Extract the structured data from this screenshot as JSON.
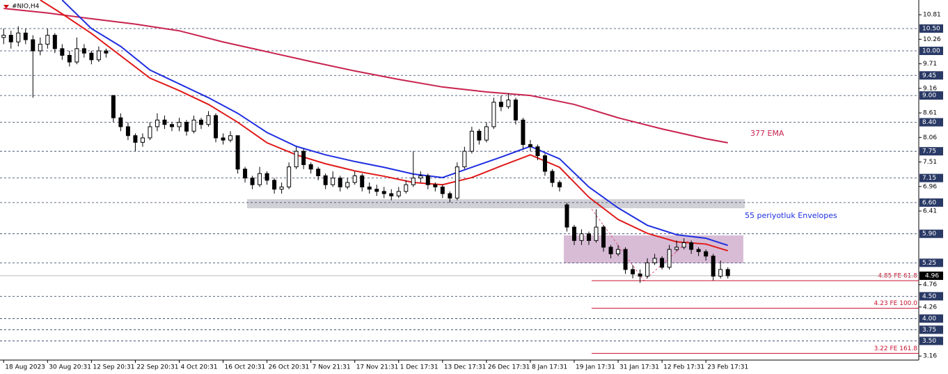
{
  "chart_data": {
    "type": "candlestick",
    "title": "#NIO,H4",
    "xticks": [
      {
        "value": 0,
        "label": "18 Aug 2023"
      },
      {
        "value": 6,
        "label": "30 Aug 20:31"
      },
      {
        "value": 12,
        "label": "12 Sep 20:31"
      },
      {
        "value": 18,
        "label": "22 Sep 20:31"
      },
      {
        "value": 24,
        "label": "4 Oct 20:31"
      },
      {
        "value": 30,
        "label": "16 Oct 20:31"
      },
      {
        "value": 36,
        "label": "26 Oct 20:31"
      },
      {
        "value": 42,
        "label": "7 Nov 21:31"
      },
      {
        "value": 48,
        "label": "17 Nov 21:31"
      },
      {
        "value": 54,
        "label": "1 Dec 17:31"
      },
      {
        "value": 60,
        "label": "13 Dec 17:31"
      },
      {
        "value": 66,
        "label": "26 Dec 17:31"
      },
      {
        "value": 72,
        "label": "8 Jan 17:31"
      },
      {
        "value": 78,
        "label": "19 Jan 17:31"
      },
      {
        "value": 84,
        "label": "31 Jan 17:31"
      },
      {
        "value": 90,
        "label": "12 Feb 17:31"
      },
      {
        "value": 96,
        "label": "23 Feb 17:31"
      }
    ],
    "xlim": [
      -0.5,
      125.1
    ],
    "ylim": [
      3.07,
      11.14
    ],
    "yticks": [
      10.81,
      10.26,
      9.71,
      9.16,
      8.61,
      8.06,
      7.51,
      6.96,
      6.41,
      4.76,
      4.26,
      3.16
    ],
    "levels": [
      {
        "value": 10.5,
        "label": "10.50"
      },
      {
        "value": 10,
        "label": "10.00"
      },
      9.45,
      {
        "value": 9,
        "label": "9.00"
      },
      {
        "value": 8.4,
        "label": "8.40"
      },
      7.75,
      7.15,
      {
        "value": 6.6,
        "label": "6.60"
      },
      {
        "value": 5.9,
        "label": "5.90"
      },
      5.25,
      {
        "value": 4.5,
        "label": "4.50"
      },
      {
        "value": 4,
        "label": "4.00"
      },
      3.75,
      {
        "value": 3.5,
        "label": "3.50"
      }
    ],
    "last": 4.96,
    "targets": [
      {
        "value": 4.85,
        "label": "4.85 FE 61.8"
      },
      {
        "value": 4.23,
        "label": "4.23 FE 100.0"
      },
      {
        "value": 3.22,
        "label": "3.22 FE 161.8"
      }
    ],
    "targets_color": "#c8102e",
    "ohlc": [
      [
        10.3,
        10.5,
        10.15,
        10.35
      ],
      [
        10.35,
        10.45,
        10.05,
        10.2
      ],
      [
        10.2,
        10.55,
        10.1,
        10.4
      ],
      [
        10.4,
        10.5,
        10.15,
        10.25
      ],
      [
        10.25,
        10.35,
        8.95,
        10.0
      ],
      [
        10.0,
        10.3,
        9.9,
        10.15
      ],
      [
        10.15,
        10.5,
        10.05,
        10.35
      ],
      [
        10.35,
        10.4,
        9.95,
        10.05
      ],
      [
        10.05,
        10.15,
        9.8,
        9.9
      ],
      [
        9.9,
        10.0,
        9.65,
        9.75
      ],
      [
        9.75,
        10.3,
        9.7,
        10.05
      ],
      [
        10.05,
        10.15,
        9.85,
        9.95
      ],
      [
        9.95,
        10.0,
        9.7,
        9.8
      ],
      [
        9.8,
        10.1,
        9.75,
        10.0
      ],
      [
        10.0,
        10.05,
        9.85,
        9.95
      ],
      [
        9.0,
        9.0,
        8.4,
        8.5
      ],
      [
        8.5,
        8.6,
        8.2,
        8.3
      ],
      [
        8.3,
        8.4,
        8.0,
        8.1
      ],
      [
        8.1,
        8.15,
        7.75,
        7.95
      ],
      [
        7.95,
        8.15,
        7.85,
        8.05
      ],
      [
        8.05,
        8.4,
        8.0,
        8.3
      ],
      [
        8.3,
        8.6,
        8.2,
        8.45
      ],
      [
        8.45,
        8.55,
        8.25,
        8.35
      ],
      [
        8.35,
        8.4,
        8.2,
        8.3
      ],
      [
        8.3,
        8.5,
        8.2,
        8.4
      ],
      [
        8.4,
        8.45,
        8.1,
        8.2
      ],
      [
        8.2,
        8.55,
        8.15,
        8.45
      ],
      [
        8.45,
        8.5,
        8.25,
        8.35
      ],
      [
        8.35,
        8.65,
        8.3,
        8.55
      ],
      [
        8.55,
        8.6,
        7.95,
        8.05
      ],
      [
        8.05,
        8.15,
        7.9,
        8.0
      ],
      [
        8.0,
        8.2,
        7.95,
        8.1
      ],
      [
        8.1,
        8.1,
        7.25,
        7.35
      ],
      [
        7.35,
        7.4,
        7.05,
        7.15
      ],
      [
        7.15,
        7.2,
        6.9,
        7.0
      ],
      [
        7.0,
        7.4,
        6.95,
        7.25
      ],
      [
        7.25,
        7.3,
        7.0,
        7.1
      ],
      [
        7.1,
        7.15,
        6.8,
        6.9
      ],
      [
        6.9,
        7.05,
        6.8,
        6.95
      ],
      [
        6.95,
        7.5,
        6.9,
        7.4
      ],
      [
        7.4,
        7.85,
        7.35,
        7.75
      ],
      [
        7.75,
        7.8,
        7.35,
        7.45
      ],
      [
        7.45,
        7.5,
        7.25,
        7.35
      ],
      [
        7.35,
        7.4,
        7.1,
        7.2
      ],
      [
        7.2,
        7.25,
        6.9,
        7.0
      ],
      [
        7.0,
        7.3,
        6.95,
        7.15
      ],
      [
        7.15,
        7.2,
        6.85,
        6.95
      ],
      [
        6.95,
        7.15,
        6.9,
        7.05
      ],
      [
        7.05,
        7.3,
        7.0,
        7.2
      ],
      [
        7.2,
        7.25,
        6.85,
        6.95
      ],
      [
        6.95,
        7.05,
        6.8,
        6.9
      ],
      [
        6.9,
        7.0,
        6.75,
        6.85
      ],
      [
        6.85,
        6.95,
        6.7,
        6.8
      ],
      [
        6.8,
        6.9,
        6.65,
        6.75
      ],
      [
        6.75,
        6.95,
        6.7,
        6.85
      ],
      [
        6.85,
        7.1,
        6.8,
        7.0
      ],
      [
        7.0,
        7.75,
        6.95,
        7.15
      ],
      [
        7.15,
        7.3,
        7.05,
        7.2
      ],
      [
        7.2,
        7.25,
        6.9,
        7.0
      ],
      [
        7.0,
        7.05,
        6.85,
        6.95
      ],
      [
        6.95,
        7.0,
        6.7,
        6.8
      ],
      [
        6.8,
        6.85,
        6.6,
        6.7
      ],
      [
        6.7,
        7.5,
        6.65,
        7.4
      ],
      [
        7.4,
        7.85,
        7.35,
        7.75
      ],
      [
        7.75,
        8.3,
        7.7,
        8.2
      ],
      [
        8.2,
        8.25,
        7.9,
        8.0
      ],
      [
        8.0,
        8.4,
        7.95,
        8.3
      ],
      [
        8.3,
        8.95,
        8.25,
        8.85
      ],
      [
        8.85,
        9.0,
        8.65,
        8.75
      ],
      [
        8.75,
        9.05,
        8.7,
        8.9
      ],
      [
        8.9,
        8.95,
        8.35,
        8.45
      ],
      [
        8.45,
        8.5,
        7.8,
        7.9
      ],
      [
        7.9,
        8.0,
        7.75,
        7.85
      ],
      [
        7.85,
        7.9,
        7.55,
        7.65
      ],
      [
        7.65,
        7.7,
        7.2,
        7.3
      ],
      [
        7.3,
        7.35,
        6.95,
        7.05
      ],
      [
        7.05,
        7.1,
        6.85,
        6.95
      ],
      [
        6.55,
        6.6,
        5.95,
        6.05
      ],
      [
        6.05,
        6.1,
        5.65,
        5.75
      ],
      [
        5.75,
        6.0,
        5.65,
        5.9
      ],
      [
        5.9,
        5.95,
        5.65,
        5.75
      ],
      [
        5.75,
        6.45,
        5.7,
        6.05
      ],
      [
        6.05,
        6.1,
        5.5,
        5.6
      ],
      [
        5.6,
        5.65,
        5.35,
        5.45
      ],
      [
        5.45,
        5.65,
        5.4,
        5.55
      ],
      [
        5.55,
        5.6,
        5.0,
        5.1
      ],
      [
        5.1,
        5.2,
        4.9,
        5.0
      ],
      [
        5.0,
        5.1,
        4.8,
        4.95
      ],
      [
        4.95,
        5.35,
        4.9,
        5.25
      ],
      [
        5.25,
        5.45,
        5.2,
        5.35
      ],
      [
        5.35,
        5.4,
        5.1,
        5.15
      ],
      [
        5.15,
        5.65,
        5.1,
        5.55
      ],
      [
        5.55,
        5.75,
        5.5,
        5.6
      ],
      [
        5.6,
        5.8,
        5.55,
        5.7
      ],
      [
        5.7,
        5.75,
        5.45,
        5.55
      ],
      [
        5.55,
        5.6,
        5.4,
        5.5
      ],
      [
        5.5,
        5.55,
        5.3,
        5.4
      ],
      [
        5.4,
        5.45,
        4.85,
        4.95
      ],
      [
        4.95,
        5.3,
        4.9,
        5.1
      ],
      [
        5.1,
        5.15,
        4.9,
        4.96
      ]
    ],
    "lines": [
      {
        "color": "#c8234e",
        "x": [
          0,
          6,
          12,
          18,
          24,
          30,
          36,
          42,
          48,
          54,
          60,
          66,
          72,
          78,
          84,
          90,
          96,
          99
        ],
        "values": [
          10.95,
          10.85,
          10.72,
          10.6,
          10.45,
          10.2,
          9.98,
          9.76,
          9.55,
          9.36,
          9.19,
          9.08,
          9.0,
          8.8,
          8.5,
          8.25,
          8.03,
          7.94
        ]
      },
      {
        "color": "#1f2fe0",
        "x": [
          8,
          12,
          16,
          20,
          24,
          28,
          32,
          36,
          40,
          44,
          48,
          52,
          56,
          60,
          64,
          68,
          72,
          76,
          80,
          84,
          88,
          92,
          96,
          99
        ],
        "values": [
          11.14,
          10.5,
          10.1,
          9.57,
          9.26,
          8.95,
          8.6,
          8.17,
          7.86,
          7.67,
          7.52,
          7.39,
          7.24,
          7.16,
          7.39,
          7.62,
          7.86,
          7.58,
          6.95,
          6.48,
          6.09,
          5.88,
          5.8,
          5.64
        ]
      },
      {
        "color": "#e01a1a",
        "x": [
          5,
          8,
          12,
          16,
          20,
          24,
          28,
          32,
          36,
          40,
          44,
          48,
          52,
          56,
          60,
          64,
          68,
          72,
          76,
          80,
          84,
          88,
          92,
          96,
          99
        ],
        "values": [
          11.14,
          10.83,
          10.39,
          9.89,
          9.39,
          9.11,
          8.8,
          8.4,
          7.94,
          7.67,
          7.47,
          7.31,
          7.19,
          7.05,
          7.0,
          7.16,
          7.42,
          7.67,
          7.39,
          6.72,
          6.22,
          5.91,
          5.72,
          5.67,
          5.52
        ]
      }
    ],
    "annotations": [
      {
        "text": "377 EMA",
        "color": "#c8234e"
      },
      {
        "text": "55 periyotluk Envelopes",
        "color": "#1f2fe0"
      }
    ]
  }
}
